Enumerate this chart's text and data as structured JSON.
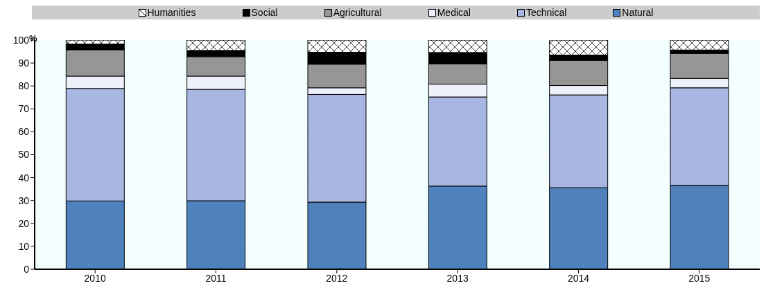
{
  "chart_data": {
    "type": "bar",
    "stacked": true,
    "ylabel": "%",
    "categories": [
      "2010",
      "2011",
      "2012",
      "2013",
      "2014",
      "2015"
    ],
    "series": [
      {
        "name": "Natural",
        "color": "#4f81bd",
        "values": [
          29.8,
          29.9,
          29.3,
          36.3,
          35.6,
          36.6
        ]
      },
      {
        "name": "Technical",
        "color": "#a7b7e1",
        "values": [
          49.1,
          48.6,
          47.0,
          38.9,
          40.5,
          42.6
        ]
      },
      {
        "name": "Medical",
        "color": "#eef0fa",
        "values": [
          5.4,
          5.8,
          2.9,
          5.6,
          4.1,
          4.1
        ]
      },
      {
        "name": "Agricultural",
        "color": "#969696",
        "values": [
          11.5,
          8.5,
          10.3,
          8.8,
          11.0,
          10.9
        ]
      },
      {
        "name": "Social",
        "color": "#000000",
        "values": [
          2.5,
          2.7,
          5.2,
          5.0,
          2.3,
          1.5
        ]
      },
      {
        "name": "Humanities",
        "color": "#ffffff",
        "values": [
          1.7,
          4.5,
          5.3,
          5.4,
          6.5,
          4.3
        ]
      }
    ],
    "ylim": [
      0,
      100
    ],
    "yticks": [
      0,
      10,
      20,
      30,
      40,
      50,
      60,
      70,
      80,
      90,
      100
    ],
    "grid": "y",
    "legend": "top"
  }
}
